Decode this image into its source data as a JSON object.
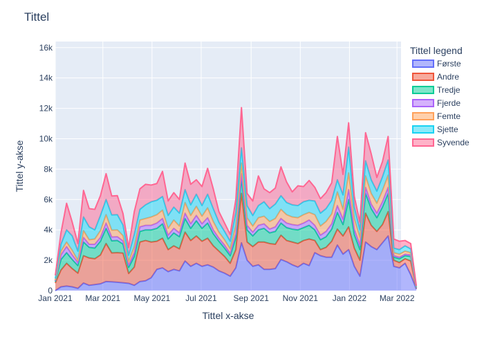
{
  "chart_data": {
    "type": "area",
    "stacked": true,
    "title": "Tittel",
    "xlabel": "Tittel x-akse",
    "ylabel": "Tittel y-akse",
    "legend_title": "Tittel legend",
    "legend_position": "right",
    "grid": true,
    "x_start": "2021-01-01",
    "x_end": "2022-03-06",
    "x_interval_days": 7,
    "xlim": [
      "2021-01-01",
      "2022-03-06"
    ],
    "ylim": [
      0,
      16400
    ],
    "x_ticks": [
      {
        "date": "2021-01-01",
        "label": "Jan 2021"
      },
      {
        "date": "2021-03-01",
        "label": "Mar 2021"
      },
      {
        "date": "2021-05-01",
        "label": "May 2021"
      },
      {
        "date": "2021-07-01",
        "label": "Jul 2021"
      },
      {
        "date": "2021-09-01",
        "label": "Sep 2021"
      },
      {
        "date": "2021-11-01",
        "label": "Nov 2021"
      },
      {
        "date": "2022-01-01",
        "label": "Jan 2022"
      },
      {
        "date": "2022-03-01",
        "label": "Mar 2022"
      }
    ],
    "y_ticks": [
      {
        "value": 0,
        "label": "0"
      },
      {
        "value": 2000,
        "label": "2k"
      },
      {
        "value": 4000,
        "label": "4k"
      },
      {
        "value": 6000,
        "label": "6k"
      },
      {
        "value": 8000,
        "label": "8k"
      },
      {
        "value": 10000,
        "label": "10k"
      },
      {
        "value": 12000,
        "label": "12k"
      },
      {
        "value": 14000,
        "label": "14k"
      },
      {
        "value": 16000,
        "label": "16k"
      }
    ],
    "series": [
      {
        "name": "Første",
        "color": "#636efa",
        "values": [
          0,
          250,
          300,
          250,
          150,
          500,
          350,
          400,
          450,
          600,
          580,
          550,
          520,
          480,
          350,
          600,
          650,
          850,
          1400,
          1500,
          1250,
          1400,
          1300,
          1950,
          1600,
          1800,
          1600,
          1700,
          1550,
          1300,
          1150,
          950,
          1500,
          3150,
          2000,
          1600,
          1700,
          1400,
          1400,
          1450,
          2050,
          1900,
          1700,
          1550,
          1800,
          1650,
          2500,
          2300,
          2200,
          2200,
          3000,
          2400,
          2700,
          1600,
          950,
          3200,
          2900,
          2700,
          3150,
          3600,
          1600,
          1500,
          1800,
          1050,
          100
        ]
      },
      {
        "name": "Andre",
        "color": "#ef553b",
        "values": [
          500,
          1100,
          1500,
          1200,
          1000,
          1800,
          1800,
          1700,
          1900,
          2500,
          1900,
          1950,
          1950,
          650,
          1200,
          2600,
          2650,
          2350,
          1850,
          1950,
          1450,
          1550,
          1450,
          1900,
          1700,
          1800,
          1650,
          1750,
          1400,
          1300,
          1100,
          850,
          1200,
          3250,
          1200,
          1300,
          1500,
          1800,
          1700,
          1600,
          1600,
          1400,
          1500,
          1550,
          1500,
          1750,
          800,
          400,
          650,
          1050,
          1050,
          1200,
          1500,
          1200,
          1050,
          1900,
          1400,
          1200,
          1200,
          1600,
          400,
          350,
          300,
          900,
          50
        ]
      },
      {
        "name": "Tredje",
        "color": "#00cc96",
        "values": [
          100,
          700,
          700,
          600,
          500,
          900,
          700,
          700,
          900,
          1000,
          800,
          800,
          600,
          400,
          700,
          700,
          700,
          800,
          850,
          950,
          700,
          850,
          800,
          900,
          800,
          1000,
          850,
          1000,
          800,
          650,
          550,
          500,
          800,
          1000,
          800,
          700,
          800,
          900,
          700,
          850,
          800,
          850,
          850,
          900,
          850,
          900,
          700,
          650,
          700,
          800,
          1100,
          750,
          1800,
          900,
          700,
          1300,
          1100,
          900,
          1150,
          1200,
          200,
          250,
          200,
          300,
          30
        ]
      },
      {
        "name": "Fjerde",
        "color": "#ab63fa",
        "values": [
          50,
          300,
          400,
          300,
          200,
          300,
          200,
          250,
          250,
          350,
          250,
          250,
          200,
          150,
          250,
          300,
          300,
          300,
          350,
          350,
          250,
          300,
          250,
          350,
          300,
          350,
          300,
          350,
          250,
          200,
          200,
          150,
          250,
          300,
          300,
          250,
          300,
          300,
          250,
          300,
          300,
          300,
          300,
          300,
          300,
          350,
          300,
          300,
          350,
          350,
          450,
          350,
          650,
          350,
          300,
          400,
          300,
          300,
          350,
          400,
          100,
          100,
          100,
          100,
          20
        ]
      },
      {
        "name": "Femte",
        "color": "#ffa15a",
        "values": [
          50,
          250,
          300,
          300,
          150,
          450,
          300,
          350,
          450,
          550,
          450,
          450,
          350,
          250,
          400,
          450,
          450,
          550,
          550,
          550,
          450,
          550,
          450,
          700,
          550,
          600,
          500,
          650,
          550,
          400,
          350,
          300,
          550,
          700,
          500,
          400,
          500,
          500,
          500,
          550,
          600,
          550,
          500,
          500,
          550,
          500,
          700,
          600,
          650,
          650,
          900,
          650,
          1100,
          700,
          500,
          750,
          700,
          650,
          750,
          800,
          200,
          200,
          200,
          150,
          20
        ]
      },
      {
        "name": "Sjette",
        "color": "#19d3f3",
        "values": [
          100,
          450,
          800,
          950,
          600,
          900,
          850,
          600,
          1000,
          1000,
          1000,
          1000,
          700,
          400,
          800,
          700,
          900,
          1000,
          950,
          900,
          850,
          850,
          850,
          850,
          700,
          800,
          700,
          900,
          850,
          650,
          550,
          500,
          850,
          1000,
          800,
          700,
          800,
          950,
          850,
          950,
          900,
          800,
          800,
          800,
          850,
          800,
          900,
          850,
          850,
          900,
          800,
          950,
          1700,
          750,
          500,
          1000,
          900,
          800,
          900,
          1000,
          300,
          300,
          350,
          250,
          30
        ]
      },
      {
        "name": "Syvende",
        "color": "#ff6692",
        "values": [
          200,
          750,
          1750,
          900,
          500,
          1750,
          1200,
          1350,
          1300,
          1700,
          1250,
          1250,
          750,
          500,
          1500,
          1350,
          1350,
          1100,
          1100,
          1650,
          950,
          950,
          900,
          1750,
          1350,
          950,
          1250,
          1700,
          1300,
          700,
          550,
          450,
          850,
          2650,
          800,
          950,
          1950,
          850,
          1050,
          1050,
          1900,
          1350,
          850,
          1300,
          1000,
          1300,
          900,
          950,
          1050,
          1150,
          2850,
          1350,
          1600,
          700,
          500,
          1850,
          1700,
          900,
          1000,
          1550,
          600,
          550,
          350,
          350,
          50
        ]
      }
    ]
  }
}
